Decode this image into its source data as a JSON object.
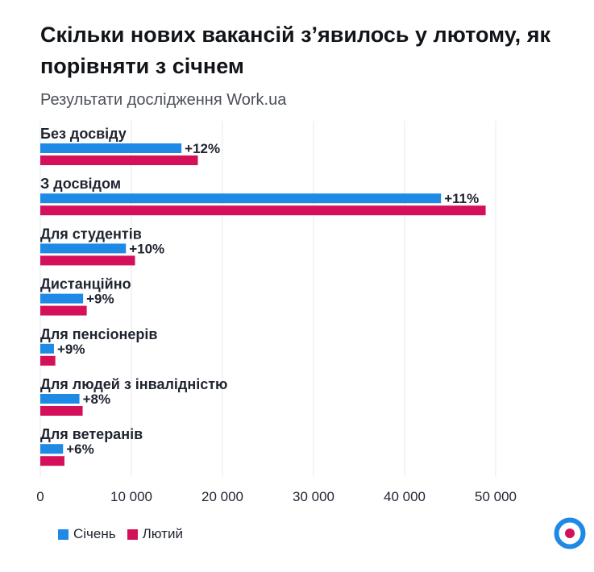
{
  "header": {
    "title": "Скільки нових вакансій з’явилось у лютому, як порівняти з січнем",
    "subtitle": "Результати дослідження Work.ua"
  },
  "colors": {
    "jan": "#1e8ae6",
    "feb": "#d5105a",
    "text": "#1f2430",
    "grid": "#e6e8ec"
  },
  "legend": {
    "jan_label": "Січень",
    "feb_label": "Лютий"
  },
  "logo": {
    "icon": "target-circle-icon"
  },
  "chart_data": {
    "type": "bar",
    "orientation": "horizontal",
    "categories": [
      "Без досвіду",
      "З досвідом",
      "Для студентів",
      "Дистанційно",
      "Для пенсіонерів",
      "Для людей з інвалідністю",
      "Для ветеранів"
    ],
    "series": [
      {
        "name": "Січень",
        "values": [
          15500,
          44000,
          9400,
          4700,
          1500,
          4300,
          2500
        ]
      },
      {
        "name": "Лютий",
        "values": [
          17300,
          48900,
          10400,
          5100,
          1650,
          4650,
          2650
        ]
      }
    ],
    "annotations": [
      "+12%",
      "+11%",
      "+10%",
      "+9%",
      "+9%",
      "+8%",
      "+6%"
    ],
    "xlim": [
      0,
      50000
    ],
    "xticks": [
      0,
      10000,
      20000,
      30000,
      40000,
      50000
    ],
    "xtick_labels": [
      "0",
      "10 000",
      "20 000",
      "30 000",
      "40 000",
      "50 000"
    ],
    "grid": true,
    "legend_position": "bottom-left"
  }
}
